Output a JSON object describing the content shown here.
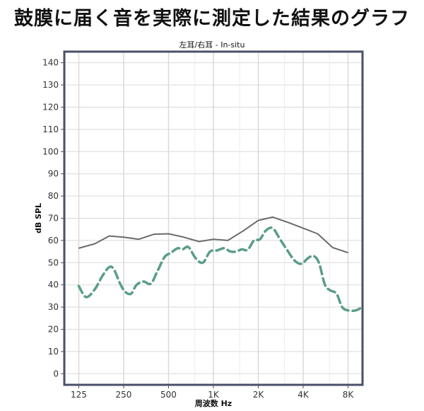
{
  "page_title": "鼓膜に届く音を実際に測定した結果のグラフ",
  "chart_data": {
    "type": "line",
    "title": "左耳/右耳 - In-situ",
    "xlabel": "周波数 Hz",
    "ylabel": "dB SPL",
    "x_scale": "log",
    "xlim": [
      100,
      10000
    ],
    "ylim": [
      -5,
      145
    ],
    "yticks": [
      0,
      10,
      20,
      30,
      40,
      50,
      60,
      70,
      80,
      90,
      100,
      110,
      120,
      130,
      140
    ],
    "xticks": [
      {
        "value": 125,
        "label": "125"
      },
      {
        "value": 250,
        "label": "250"
      },
      {
        "value": 500,
        "label": "500"
      },
      {
        "value": 1000,
        "label": "1K"
      },
      {
        "value": 2000,
        "label": "2K"
      },
      {
        "value": 4000,
        "label": "4K"
      },
      {
        "value": 8000,
        "label": "8K"
      }
    ],
    "minor_gridlines": [
      750,
      1500,
      3000,
      6000
    ],
    "grid": true,
    "colors": {
      "gray_series": "#6b6b6b",
      "green_series": "#5a9e84",
      "frame": "#4a4f6a",
      "grid": "#d9d9d9"
    },
    "series": [
      {
        "style": "solid",
        "x": [
          125,
          160,
          200,
          250,
          315,
          400,
          500,
          630,
          800,
          1000,
          1250,
          1600,
          2000,
          2500,
          3150,
          4000,
          5000,
          6300,
          8000
        ],
        "y": [
          56.5,
          58.5,
          62,
          61.5,
          60.5,
          62.8,
          63,
          61.5,
          59.5,
          60.5,
          60,
          64.5,
          69,
          70.5,
          68.2,
          65.5,
          63,
          56.8,
          54.5
        ]
      },
      {
        "style": "dashed",
        "x": [
          125,
          140,
          160,
          180,
          200,
          215,
          235,
          255,
          280,
          305,
          340,
          380,
          420,
          470,
          520,
          575,
          620,
          680,
          760,
          850,
          950,
          1060,
          1180,
          1300,
          1420,
          1550,
          1700,
          1870,
          2050,
          2250,
          2500,
          2800,
          3100,
          3500,
          3900,
          4300,
          4700,
          5100,
          5600,
          6100,
          6700,
          7300,
          8000,
          9000,
          10000
        ],
        "y": [
          39.5,
          34.5,
          38,
          44,
          48,
          47,
          41,
          37,
          36,
          40,
          41.5,
          40.5,
          46,
          52.5,
          54.5,
          56.5,
          56,
          57,
          52,
          50,
          55,
          55.5,
          56.5,
          55,
          55,
          56,
          55.8,
          60,
          60.5,
          64.5,
          65.5,
          60.5,
          56,
          51,
          49.5,
          52,
          53,
          50,
          40,
          37.5,
          36,
          30,
          28.5,
          28.5,
          30
        ]
      }
    ]
  }
}
